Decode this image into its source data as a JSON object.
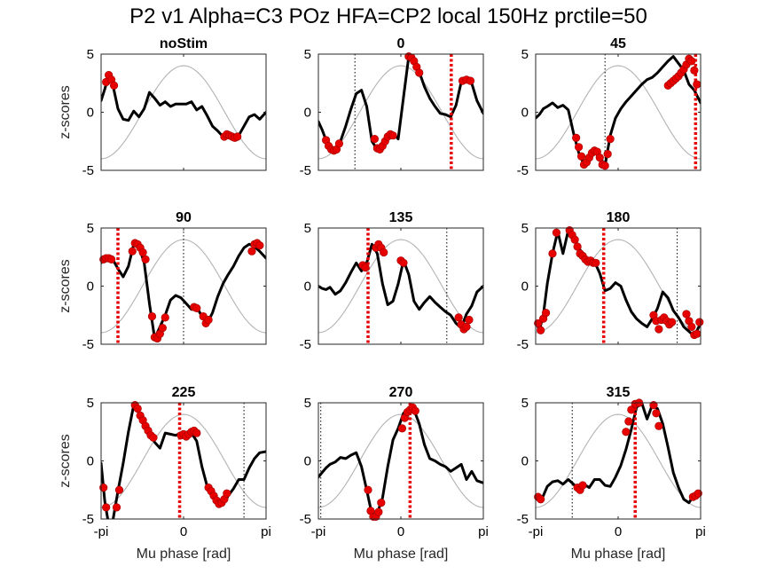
{
  "figure_title": "P2 v1 Alpha=C3 POz HFA=CP2 local 150Hz prctile=50",
  "chart_data": {
    "type": "line",
    "panel_count": 9,
    "xlabel": "Mu phase [rad]",
    "ylabel": "z-scores",
    "xlim": [
      -3.1416,
      3.1416
    ],
    "ylim": [
      -5,
      5
    ],
    "xtick_labels": [
      "-pi",
      "0",
      "pi"
    ],
    "yticks": [
      -5,
      0,
      5
    ],
    "grid": false,
    "reference_curve": {
      "type": "cosine",
      "amplitude": 4,
      "color": "#b3b3b3"
    },
    "colors": {
      "trace": "#000000",
      "significant_marker": "#e60000",
      "stim_phase_line": "#e60000",
      "dotted_line": "#000000"
    },
    "panels": [
      {
        "title": "noStim",
        "stim_phase": null,
        "dotted_phase": null,
        "x": [
          -3.14,
          -3.0,
          -2.85,
          -2.7,
          -2.5,
          -2.3,
          -2.1,
          -1.9,
          -1.7,
          -1.5,
          -1.3,
          -1.1,
          -0.9,
          -0.7,
          -0.5,
          -0.3,
          -0.1,
          0.1,
          0.3,
          0.5,
          0.7,
          0.9,
          1.1,
          1.3,
          1.5,
          1.7,
          1.9,
          2.1,
          2.3,
          2.5,
          2.7,
          2.9,
          3.14
        ],
        "y": [
          1.0,
          2.0,
          3.2,
          2.4,
          0.3,
          -0.6,
          -0.7,
          0.1,
          -0.4,
          0.3,
          1.7,
          1.2,
          0.6,
          0.9,
          0.5,
          0.7,
          0.7,
          0.7,
          0.9,
          0.2,
          0.5,
          -0.3,
          -1.2,
          -1.6,
          -2.1,
          -1.8,
          -2.1,
          -2.0,
          -1.2,
          -0.4,
          -0.2,
          -0.6,
          0.0
        ],
        "sig_x": [
          -2.95,
          -2.85,
          -2.75,
          -2.65,
          1.55,
          1.65,
          1.75,
          1.85,
          1.95,
          2.05
        ],
        "sig_y": [
          2.6,
          3.2,
          2.8,
          2.3,
          -2.1,
          -1.9,
          -2.0,
          -2.1,
          -2.2,
          -2.1
        ]
      },
      {
        "title": "0",
        "stim_phase": 1.92,
        "dotted_phase": -1.75,
        "x": [
          -3.14,
          -3.0,
          -2.85,
          -2.7,
          -2.5,
          -2.3,
          -2.1,
          -1.9,
          -1.7,
          -1.5,
          -1.3,
          -1.1,
          -0.9,
          -0.7,
          -0.5,
          -0.3,
          -0.1,
          0.1,
          0.3,
          0.5,
          0.7,
          0.9,
          1.1,
          1.3,
          1.5,
          1.7,
          1.9,
          2.1,
          2.3,
          2.5,
          2.7,
          2.9,
          3.14
        ],
        "y": [
          -0.8,
          -1.5,
          -2.4,
          -3.2,
          -3.3,
          -2.5,
          -1.2,
          0.3,
          1.6,
          1.9,
          0.5,
          -2.5,
          -3.2,
          -2.8,
          -2.0,
          -1.8,
          -2.3,
          1.3,
          4.8,
          4.5,
          3.5,
          2.2,
          1.2,
          0.5,
          -0.1,
          -0.2,
          -0.4,
          0.6,
          2.6,
          2.8,
          2.5,
          1.0,
          -0.1
        ],
        "sig_x": [
          -2.85,
          -2.75,
          -2.65,
          -2.55,
          -2.45,
          -2.35,
          -1.0,
          -0.9,
          -0.8,
          -0.7,
          -0.6,
          -0.5,
          -0.4,
          -0.3,
          0.3,
          0.4,
          0.5,
          0.6,
          0.7,
          2.35,
          2.5,
          2.65
        ],
        "sig_y": [
          -2.4,
          -2.9,
          -3.2,
          -3.3,
          -3.2,
          -2.7,
          -2.3,
          -3.1,
          -3.2,
          -2.9,
          -2.5,
          -2.1,
          -1.9,
          -2.0,
          4.8,
          4.7,
          4.4,
          3.9,
          3.4,
          2.7,
          2.8,
          2.7
        ]
      },
      {
        "title": "45",
        "stim_phase": 2.95,
        "dotted_phase": -0.5,
        "x": [
          -3.14,
          -3.0,
          -2.85,
          -2.7,
          -2.5,
          -2.3,
          -2.1,
          -1.9,
          -1.7,
          -1.5,
          -1.3,
          -1.1,
          -0.9,
          -0.7,
          -0.5,
          -0.3,
          -0.1,
          0.1,
          0.3,
          0.5,
          0.7,
          0.9,
          1.1,
          1.3,
          1.5,
          1.7,
          1.9,
          2.1,
          2.3,
          2.5,
          2.7,
          2.9,
          3.14
        ],
        "y": [
          -0.5,
          -0.2,
          0.3,
          0.5,
          0.8,
          0.4,
          0.6,
          0.2,
          -1.8,
          -3.5,
          -4.5,
          -4.0,
          -3.3,
          -3.8,
          -4.6,
          -2.0,
          -0.5,
          0.3,
          0.9,
          1.4,
          1.9,
          2.4,
          2.8,
          3.0,
          3.4,
          3.9,
          4.4,
          4.8,
          4.2,
          3.6,
          2.4,
          1.9,
          0.8
        ],
        "sig_x": [
          -1.6,
          -1.5,
          -1.4,
          -1.3,
          -1.2,
          -1.1,
          -1.0,
          -0.9,
          -0.8,
          -0.7,
          -0.6,
          -0.5,
          -0.4,
          -0.3,
          1.9,
          2.0,
          2.1,
          2.2,
          2.3,
          2.4,
          2.5,
          2.6,
          2.7,
          2.8,
          2.9,
          3.0
        ],
        "sig_y": [
          -2.2,
          -3.0,
          -3.8,
          -4.5,
          -4.3,
          -3.9,
          -3.5,
          -3.3,
          -3.4,
          -3.9,
          -4.5,
          -4.6,
          -3.6,
          -2.3,
          2.3,
          2.5,
          2.7,
          2.9,
          3.1,
          3.4,
          3.7,
          4.1,
          4.6,
          4.4,
          3.6,
          2.4
        ]
      },
      {
        "title": "90",
        "stim_phase": -2.5,
        "dotted_phase": 0.0,
        "x": [
          -3.14,
          -3.0,
          -2.85,
          -2.7,
          -2.5,
          -2.3,
          -2.1,
          -1.9,
          -1.7,
          -1.5,
          -1.3,
          -1.1,
          -0.9,
          -0.7,
          -0.5,
          -0.3,
          -0.1,
          0.1,
          0.3,
          0.5,
          0.7,
          0.9,
          1.1,
          1.3,
          1.5,
          1.7,
          1.9,
          2.1,
          2.3,
          2.5,
          2.7,
          2.9,
          3.14
        ],
        "y": [
          2.0,
          2.4,
          2.4,
          2.3,
          1.5,
          0.8,
          1.7,
          3.6,
          3.4,
          2.0,
          -1.5,
          -4.5,
          -3.5,
          -2.5,
          -1.2,
          -0.8,
          -1.0,
          -1.5,
          -2.0,
          -1.8,
          -2.6,
          -3.2,
          -2.3,
          -0.9,
          0.2,
          1.0,
          1.7,
          2.6,
          3.3,
          3.6,
          3.4,
          3.0,
          2.4
        ],
        "sig_x": [
          -3.05,
          -2.95,
          -2.85,
          -2.75,
          -1.95,
          -1.85,
          -1.75,
          -1.65,
          -1.55,
          -1.45,
          -1.2,
          -1.1,
          -1.0,
          -0.9,
          -0.8,
          -0.7,
          0.4,
          0.5,
          0.75,
          0.85,
          0.95,
          2.6,
          2.7,
          2.8,
          2.9
        ],
        "sig_y": [
          2.3,
          2.4,
          2.4,
          2.3,
          3.0,
          3.7,
          3.6,
          3.3,
          2.9,
          2.3,
          -2.6,
          -4.4,
          -4.5,
          -4.1,
          -3.6,
          -2.7,
          -1.8,
          -1.9,
          -2.6,
          -3.2,
          -2.9,
          3.0,
          3.6,
          3.7,
          3.5
        ]
      },
      {
        "title": "135",
        "stim_phase": -1.25,
        "dotted_phase": 1.75,
        "x": [
          -3.14,
          -3.0,
          -2.85,
          -2.7,
          -2.5,
          -2.3,
          -2.1,
          -1.9,
          -1.7,
          -1.5,
          -1.3,
          -1.1,
          -0.9,
          -0.7,
          -0.5,
          -0.3,
          -0.1,
          0.1,
          0.3,
          0.5,
          0.7,
          0.9,
          1.1,
          1.3,
          1.5,
          1.7,
          1.9,
          2.1,
          2.3,
          2.5,
          2.7,
          2.9,
          3.14
        ],
        "y": [
          0.0,
          -0.2,
          -0.3,
          -0.1,
          -0.7,
          -0.4,
          0.3,
          1.2,
          2.0,
          1.3,
          2.0,
          3.6,
          2.8,
          0.2,
          -1.6,
          -1.3,
          0.2,
          2.2,
          1.0,
          -1.3,
          -2.0,
          -1.4,
          -0.9,
          -1.4,
          -1.8,
          -2.2,
          -2.5,
          -3.2,
          -3.6,
          -2.4,
          -1.7,
          -0.5,
          0.0
        ],
        "sig_x": [
          -1.45,
          -1.35,
          -0.95,
          -0.85,
          -0.75,
          -0.65,
          0.0,
          0.1,
          2.2,
          2.3,
          2.4,
          2.5,
          2.6
        ],
        "sig_y": [
          1.8,
          1.6,
          3.3,
          3.6,
          3.3,
          2.9,
          2.2,
          2.0,
          -2.7,
          -3.3,
          -3.7,
          -3.5,
          -2.9
        ]
      },
      {
        "title": "180",
        "stim_phase": -0.55,
        "dotted_phase": 2.25,
        "x": [
          -3.14,
          -3.0,
          -2.85,
          -2.7,
          -2.5,
          -2.3,
          -2.1,
          -1.9,
          -1.7,
          -1.5,
          -1.3,
          -1.1,
          -0.9,
          -0.7,
          -0.5,
          -0.3,
          -0.1,
          0.1,
          0.3,
          0.5,
          0.7,
          0.9,
          1.1,
          1.3,
          1.5,
          1.7,
          1.9,
          2.1,
          2.3,
          2.5,
          2.7,
          2.9,
          3.14
        ],
        "y": [
          -3.0,
          -3.8,
          -2.5,
          0.2,
          2.8,
          4.7,
          2.8,
          4.8,
          4.3,
          3.3,
          2.6,
          2.2,
          2.1,
          1.1,
          -0.4,
          -0.2,
          0.3,
          0.0,
          -1.2,
          -2.2,
          -2.8,
          -3.2,
          -3.5,
          -2.8,
          -1.9,
          -0.5,
          -1.0,
          -2.1,
          -2.7,
          -3.5,
          -3.9,
          -4.3,
          -3.2
        ],
        "sig_x": [
          -3.05,
          -2.95,
          -2.85,
          -2.75,
          -2.5,
          -2.35,
          -1.85,
          -1.75,
          -1.65,
          -1.55,
          -1.45,
          -1.35,
          -1.25,
          -1.15,
          -1.05,
          -0.95,
          -0.85,
          1.35,
          1.45,
          1.55,
          1.65,
          1.75,
          1.85,
          1.95,
          2.05,
          2.6,
          2.7,
          2.8,
          2.9,
          3.0,
          3.1
        ],
        "sig_y": [
          -3.2,
          -3.8,
          -2.8,
          -2.3,
          2.8,
          4.6,
          4.8,
          4.4,
          4.0,
          3.4,
          2.8,
          2.6,
          2.3,
          2.1,
          2.2,
          2.0,
          2.0,
          -2.5,
          -3.0,
          -3.7,
          -2.9,
          -2.7,
          -3.0,
          -3.3,
          -3.1,
          -2.4,
          -3.0,
          -3.5,
          -4.2,
          -4.1,
          -3.1
        ]
      },
      {
        "title": "225",
        "stim_phase": -0.15,
        "dotted_phase": 2.3,
        "x": [
          -3.14,
          -3.0,
          -2.85,
          -2.7,
          -2.5,
          -2.3,
          -2.1,
          -1.9,
          -1.7,
          -1.5,
          -1.3,
          -1.1,
          -0.9,
          -0.7,
          -0.5,
          -0.3,
          -0.1,
          0.1,
          0.3,
          0.5,
          0.7,
          0.9,
          1.1,
          1.3,
          1.5,
          1.7,
          1.9,
          2.1,
          2.3,
          2.5,
          2.7,
          2.9,
          3.14
        ],
        "y": [
          -0.2,
          -3.5,
          -5.5,
          -5.2,
          -2.6,
          -0.2,
          2.5,
          4.8,
          4.2,
          3.2,
          2.5,
          1.6,
          1.1,
          2.4,
          2.3,
          2.2,
          2.4,
          2.2,
          2.4,
          1.7,
          -0.5,
          -2.2,
          -3.0,
          -3.5,
          -3.8,
          -3.0,
          -2.4,
          -1.6,
          -1.6,
          -0.6,
          0.2,
          0.7,
          0.8
        ],
        "sig_x": [
          -3.05,
          -2.95,
          -2.55,
          -2.45,
          -1.85,
          -1.75,
          -1.65,
          -1.55,
          -1.45,
          -1.35,
          -1.25,
          -1.15,
          -0.1,
          0.0,
          0.1,
          0.2,
          0.3,
          0.4,
          0.5,
          0.95,
          1.05,
          1.15,
          1.25,
          1.35,
          1.45,
          1.55,
          1.65
        ],
        "sig_y": [
          -2.3,
          -4.0,
          -4.0,
          -2.5,
          4.8,
          4.5,
          3.9,
          3.5,
          3.0,
          2.6,
          2.2,
          2.0,
          2.2,
          2.3,
          2.1,
          2.3,
          2.5,
          2.6,
          2.4,
          -2.3,
          -2.6,
          -3.0,
          -3.4,
          -3.7,
          -3.6,
          -3.3,
          -2.8
        ]
      },
      {
        "title": "270",
        "stim_phase": 0.35,
        "dotted_phase": -3.05,
        "x": [
          -3.14,
          -3.0,
          -2.85,
          -2.7,
          -2.5,
          -2.3,
          -2.1,
          -1.9,
          -1.7,
          -1.5,
          -1.3,
          -1.1,
          -0.9,
          -0.7,
          -0.5,
          -0.3,
          -0.1,
          0.1,
          0.3,
          0.5,
          0.7,
          0.9,
          1.1,
          1.3,
          1.5,
          1.7,
          1.9,
          2.1,
          2.3,
          2.5,
          2.7,
          2.9,
          3.14
        ],
        "y": [
          -1.4,
          -1.0,
          -0.6,
          -0.3,
          -0.1,
          0.3,
          0.2,
          0.5,
          0.7,
          -0.5,
          -2.5,
          -4.6,
          -4.5,
          -3.2,
          -0.5,
          1.8,
          2.8,
          4.1,
          4.5,
          4.4,
          3.2,
          1.4,
          0.2,
          0.0,
          -0.3,
          -0.5,
          -0.9,
          -0.6,
          -0.3,
          -1.6,
          -0.9,
          -1.7,
          -1.9
        ],
        "sig_x": [
          -1.25,
          -1.15,
          -1.05,
          -0.95,
          -0.85,
          -0.75,
          0.05,
          0.15,
          0.25,
          0.35,
          0.45,
          0.55
        ],
        "sig_y": [
          -2.5,
          -4.3,
          -4.8,
          -4.8,
          -4.4,
          -3.6,
          2.8,
          3.7,
          4.2,
          4.4,
          4.6,
          4.3
        ]
      },
      {
        "title": "315",
        "stim_phase": 0.65,
        "dotted_phase": -1.75,
        "x": [
          -3.14,
          -3.0,
          -2.85,
          -2.7,
          -2.5,
          -2.3,
          -2.1,
          -1.9,
          -1.7,
          -1.5,
          -1.3,
          -1.1,
          -0.9,
          -0.7,
          -0.5,
          -0.3,
          -0.1,
          0.1,
          0.3,
          0.5,
          0.7,
          0.9,
          1.1,
          1.3,
          1.5,
          1.7,
          1.9,
          2.1,
          2.3,
          2.5,
          2.7,
          2.9,
          3.14
        ],
        "y": [
          -3.0,
          -3.4,
          -3.0,
          -2.2,
          -1.8,
          -1.7,
          -2.0,
          -1.6,
          -2.0,
          -2.5,
          -2.0,
          -2.3,
          -1.6,
          -1.6,
          -2.1,
          -2.2,
          -1.4,
          -0.4,
          1.0,
          2.7,
          4.6,
          5.0,
          3.6,
          4.8,
          4.5,
          3.2,
          1.2,
          -1.0,
          -2.3,
          -3.3,
          -3.6,
          -2.9,
          -2.8
        ],
        "sig_x": [
          -3.05,
          -2.95,
          -1.55,
          -1.45,
          -1.35,
          0.3,
          0.4,
          0.5,
          0.65,
          0.8,
          1.35,
          1.45,
          1.55,
          2.85,
          2.95,
          3.05
        ],
        "sig_y": [
          -3.1,
          -3.3,
          -2.3,
          -2.5,
          -2.1,
          2.5,
          3.4,
          4.4,
          4.9,
          5.0,
          4.8,
          4.1,
          3.0,
          -3.1,
          -3.0,
          -2.8
        ]
      }
    ]
  }
}
